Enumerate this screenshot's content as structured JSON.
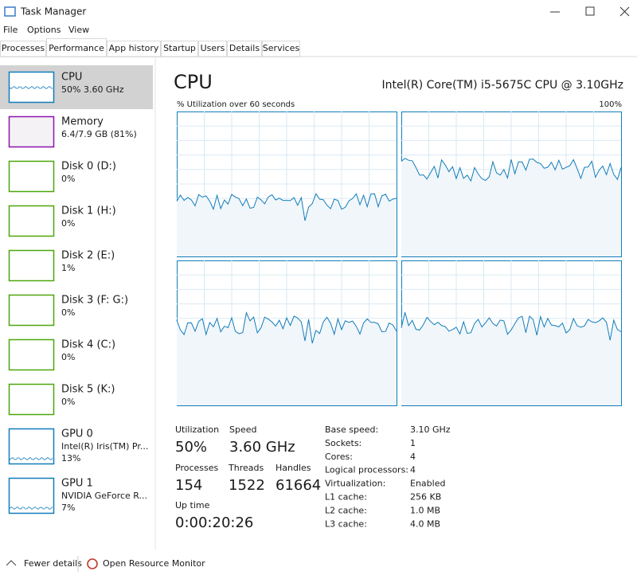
{
  "window": {
    "title": "Task Manager"
  },
  "menu": [
    "File",
    "Options",
    "View"
  ],
  "tabs": [
    "Processes",
    "Performance",
    "App history",
    "Startup",
    "Users",
    "Details",
    "Services"
  ],
  "sidebar": [
    {
      "name": "CPU",
      "details": [
        "50% 3.60 GHz"
      ]
    },
    {
      "name": "Memory",
      "details": [
        "6.4/7.9 GB (81%)"
      ]
    },
    {
      "name": "Disk 0 (D:)",
      "details": [
        "0%"
      ]
    },
    {
      "name": "Disk 1 (H:)",
      "details": [
        "0%"
      ]
    },
    {
      "name": "Disk 2 (E:)",
      "details": [
        "1%"
      ]
    },
    {
      "name": "Disk 3 (F: G:)",
      "details": [
        "0%"
      ]
    },
    {
      "name": "Disk 4 (C:)",
      "details": [
        "0%"
      ]
    },
    {
      "name": "Disk 5 (K:)",
      "details": [
        "0%"
      ]
    },
    {
      "name": "GPU 0",
      "details": [
        "Intel(R) Iris(TM) Pr...",
        "13%"
      ]
    },
    {
      "name": "GPU 1",
      "details": [
        "NVIDIA GeForce R...",
        "7%"
      ]
    }
  ],
  "main": {
    "title": "CPU",
    "model": "Intel(R) Core(TM) i5-5675C CPU @ 3.10GHz",
    "graph_label": "% Utilization over 60 seconds",
    "graph_max": "100%",
    "stats": [
      {
        "label": "Utilization",
        "value": "50%"
      },
      {
        "label": "Speed",
        "value": "3.60 GHz"
      },
      {
        "label": "Processes",
        "value": "154"
      },
      {
        "label": "Threads",
        "value": "1522"
      },
      {
        "label": "Handles",
        "value": "61664"
      },
      {
        "label": "Up time",
        "value": "0:00:20:26"
      }
    ],
    "specs": [
      {
        "label": "Base speed:",
        "value": "3.10 GHz"
      },
      {
        "label": "Sockets:",
        "value": "1"
      },
      {
        "label": "Cores:",
        "value": "4"
      },
      {
        "label": "Logical processors:",
        "value": "4"
      },
      {
        "label": "Virtualization:",
        "value": "Enabled"
      },
      {
        "label": "L1 cache:",
        "value": "256 KB"
      },
      {
        "label": "L2 cache:",
        "value": "1.0 MB"
      },
      {
        "label": "L3 cache:",
        "value": "4.0 MB"
      }
    ]
  },
  "footer": {
    "fewer_details": "Fewer details",
    "resource_monitor": "Open Resource Monitor"
  }
}
